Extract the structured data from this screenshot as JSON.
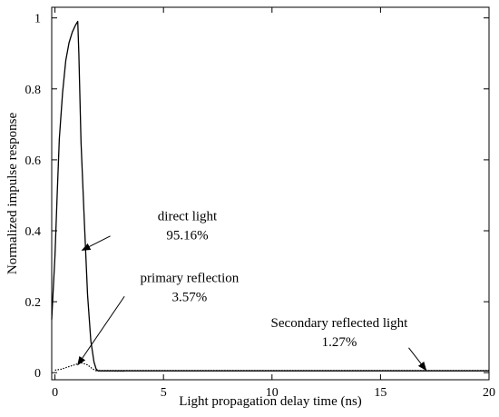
{
  "chart_data": {
    "type": "line",
    "xlabel": "Light propagation delay time (ns)",
    "ylabel": "Normalized impulse response",
    "xlim": [
      -0.15,
      20
    ],
    "ylim": [
      -0.02,
      1.03
    ],
    "xticks": [
      0,
      5,
      10,
      15,
      20
    ],
    "xtick_labels": [
      "0",
      "5",
      "10",
      "15",
      "20"
    ],
    "yticks": [
      0,
      0.2,
      0.4,
      0.6,
      0.8,
      1
    ],
    "ytick_labels": [
      "0",
      "0.2",
      "0.4",
      "0.6",
      "0.8",
      "1"
    ],
    "grid": false,
    "series": [
      {
        "style": "solid",
        "x": [
          -0.15,
          0.0,
          0.1,
          0.2,
          0.35,
          0.5,
          0.65,
          0.8,
          0.95,
          1.05,
          1.1,
          1.2,
          1.35,
          1.5,
          1.65,
          1.8,
          1.9,
          2.0,
          20.0
        ],
        "y": [
          0.15,
          0.33,
          0.5,
          0.66,
          0.79,
          0.88,
          0.93,
          0.96,
          0.98,
          0.99,
          0.9,
          0.65,
          0.43,
          0.22,
          0.09,
          0.03,
          0.01,
          0.005,
          0.005
        ]
      },
      {
        "style": "dotted",
        "x": [
          0.0,
          0.3,
          0.6,
          0.9,
          1.2,
          1.5,
          1.7,
          1.9,
          3.2
        ],
        "y": [
          0.007,
          0.01,
          0.016,
          0.022,
          0.028,
          0.022,
          0.012,
          0.005,
          0.004
        ]
      },
      {
        "style": "dotted",
        "x": [
          1.9,
          20.0
        ],
        "y": [
          0.006,
          0.006
        ]
      }
    ],
    "annotations": [
      {
        "lines": [
          "direct light",
          "95.16%"
        ],
        "text_at": [
          6.1,
          0.43
        ],
        "arrow_from": [
          2.55,
          0.385
        ],
        "arrow_to": [
          1.25,
          0.345
        ]
      },
      {
        "lines": [
          "primary reflection",
          "3.57%"
        ],
        "text_at": [
          6.2,
          0.255
        ],
        "arrow_from": [
          3.2,
          0.215
        ],
        "arrow_to": [
          1.05,
          0.022
        ]
      },
      {
        "lines": [
          "Secondary reflected light",
          "1.27%"
        ],
        "text_at": [
          13.1,
          0.128
        ],
        "arrow_from": [
          16.3,
          0.07
        ],
        "arrow_to": [
          17.1,
          0.007
        ]
      }
    ]
  }
}
